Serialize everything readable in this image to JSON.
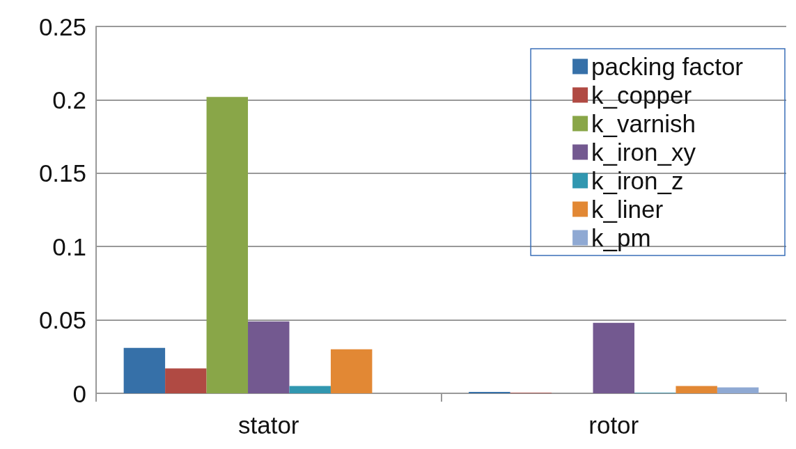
{
  "chart_data": {
    "type": "bar",
    "categories": [
      "stator",
      "rotor"
    ],
    "series": [
      {
        "name": "packing factor",
        "color": "#3670a8",
        "values": [
          0.031,
          0.001
        ]
      },
      {
        "name": "k_copper",
        "color": "#b04a43",
        "values": [
          0.017,
          0.0003
        ]
      },
      {
        "name": "k_varnish",
        "color": "#89a648",
        "values": [
          0.202,
          0
        ]
      },
      {
        "name": "k_iron_xy",
        "color": "#735990",
        "values": [
          0.049,
          0.048
        ]
      },
      {
        "name": "k_iron_z",
        "color": "#3197b0",
        "values": [
          0.005,
          0.0003
        ]
      },
      {
        "name": "k_liner",
        "color": "#e28834",
        "values": [
          0.03,
          0.005
        ]
      },
      {
        "name": "k_pm",
        "color": "#8fa9d3",
        "values": [
          0,
          0.004
        ]
      }
    ],
    "ylim": [
      0,
      0.25
    ],
    "yticks": [
      0,
      0.05,
      0.1,
      0.15,
      0.2,
      0.25
    ],
    "grid": "y",
    "legend": "top right"
  }
}
